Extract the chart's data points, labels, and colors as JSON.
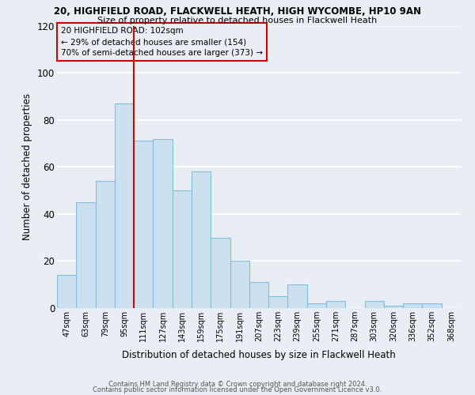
{
  "title_line1": "20, HIGHFIELD ROAD, FLACKWELL HEATH, HIGH WYCOMBE, HP10 9AN",
  "title_line2": "Size of property relative to detached houses in Flackwell Heath",
  "xlabel": "Distribution of detached houses by size in Flackwell Heath",
  "ylabel": "Number of detached properties",
  "bar_color": "#cce0f0",
  "bar_edge_color": "#7fbfdf",
  "categories": [
    "47sqm",
    "63sqm",
    "79sqm",
    "95sqm",
    "111sqm",
    "127sqm",
    "143sqm",
    "159sqm",
    "175sqm",
    "191sqm",
    "207sqm",
    "223sqm",
    "239sqm",
    "255sqm",
    "271sqm",
    "287sqm",
    "303sqm",
    "320sqm",
    "336sqm",
    "352sqm",
    "368sqm"
  ],
  "values": [
    14,
    45,
    54,
    87,
    71,
    72,
    50,
    58,
    30,
    20,
    11,
    5,
    10,
    2,
    3,
    0,
    3,
    1,
    2,
    2,
    0
  ],
  "ylim": [
    0,
    120
  ],
  "yticks": [
    0,
    20,
    40,
    60,
    80,
    100,
    120
  ],
  "vline_x_index": 3,
  "vline_color": "#cc0000",
  "annotation_line1": "20 HIGHFIELD ROAD: 102sqm",
  "annotation_line2": "← 29% of detached houses are smaller (154)",
  "annotation_line3": "70% of semi-detached houses are larger (373) →",
  "footer_line1": "Contains HM Land Registry data © Crown copyright and database right 2024.",
  "footer_line2": "Contains public sector information licensed under the Open Government Licence v3.0.",
  "background_color": "#e8eef4",
  "grid_color": "#ffffff"
}
